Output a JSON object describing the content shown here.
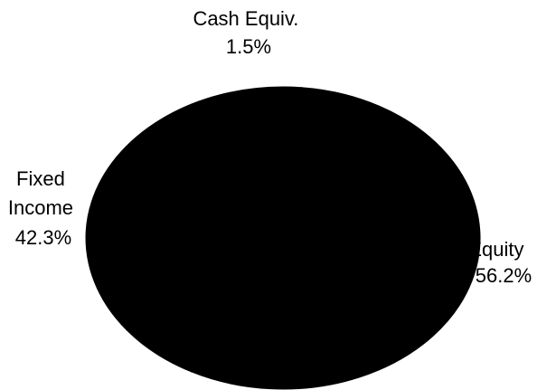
{
  "chart_data": {
    "type": "pie",
    "slices": [
      {
        "label_lines": [
          "Cash Equiv."
        ],
        "value": 1.5,
        "value_text": "1.5%",
        "color": "#000000"
      },
      {
        "label_lines": [
          "Equity"
        ],
        "value": 56.2,
        "value_text": "56.2%",
        "color": "#000000"
      },
      {
        "label_lines": [
          "Fixed",
          "Income"
        ],
        "value": 42.3,
        "value_text": "42.3%",
        "color": "#000000"
      }
    ],
    "legend": "none",
    "background": "#ffffff"
  }
}
